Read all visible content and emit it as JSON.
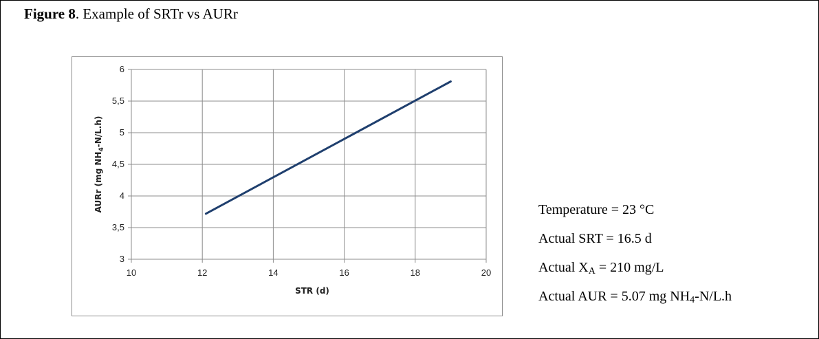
{
  "figure": {
    "label": "Figure 8",
    "title": ". Example of SRTr vs  AURr"
  },
  "chart_data": {
    "type": "line",
    "xlabel": "STR (d)",
    "ylabel_main": "AURr (mg NH",
    "ylabel_sub": "4",
    "ylabel_tail": "-N/L.h)",
    "xlim": [
      10,
      20
    ],
    "ylim": [
      3,
      6
    ],
    "x_ticks": [
      10,
      12,
      14,
      16,
      18,
      20
    ],
    "y_ticks": [
      3,
      3.5,
      4,
      4.5,
      5,
      5.5,
      6
    ],
    "x_tick_labels": [
      "10",
      "12",
      "14",
      "16",
      "18",
      "20"
    ],
    "y_tick_labels": [
      "3",
      "3,5",
      "4",
      "4,5",
      "5",
      "5,5",
      "6"
    ],
    "grid": true,
    "legend": "none",
    "series": [
      {
        "x": [
          12.1,
          19
        ],
        "y": [
          3.72,
          5.81
        ],
        "color": "#1f3f6e"
      }
    ]
  },
  "annotations": {
    "temperature": "Temperature = 23 °C",
    "srt": "Actual SRT = 16.5 d",
    "xa_prefix": "Actual X",
    "xa_sub": "A",
    "xa_suffix": " = 210 mg/L",
    "aur_prefix": "Actual AUR = 5.07 mg NH",
    "aur_sub": "4",
    "aur_suffix": "-N/L.h"
  }
}
